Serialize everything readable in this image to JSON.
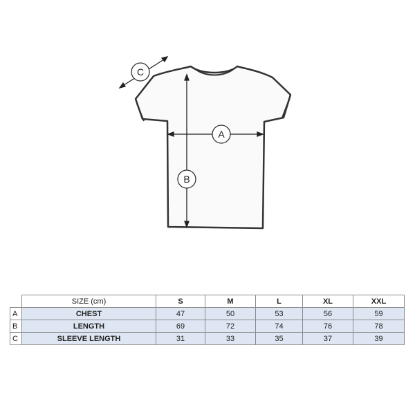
{
  "diagram": {
    "labels": {
      "chest": "A",
      "length": "B",
      "sleeve": "C"
    }
  },
  "table": {
    "header_label": "SIZE (cm)",
    "sizes": [
      "S",
      "M",
      "L",
      "XL",
      "XXL"
    ],
    "rows": [
      {
        "letter": "A",
        "label": "CHEST",
        "values": [
          "47",
          "50",
          "53",
          "56",
          "59"
        ]
      },
      {
        "letter": "B",
        "label": "LENGTH",
        "values": [
          "69",
          "72",
          "74",
          "76",
          "78"
        ]
      },
      {
        "letter": "C",
        "label": "SLEEVE LENGTH",
        "values": [
          "31",
          "33",
          "35",
          "37",
          "39"
        ]
      }
    ],
    "row_color": "#dde6f2"
  }
}
